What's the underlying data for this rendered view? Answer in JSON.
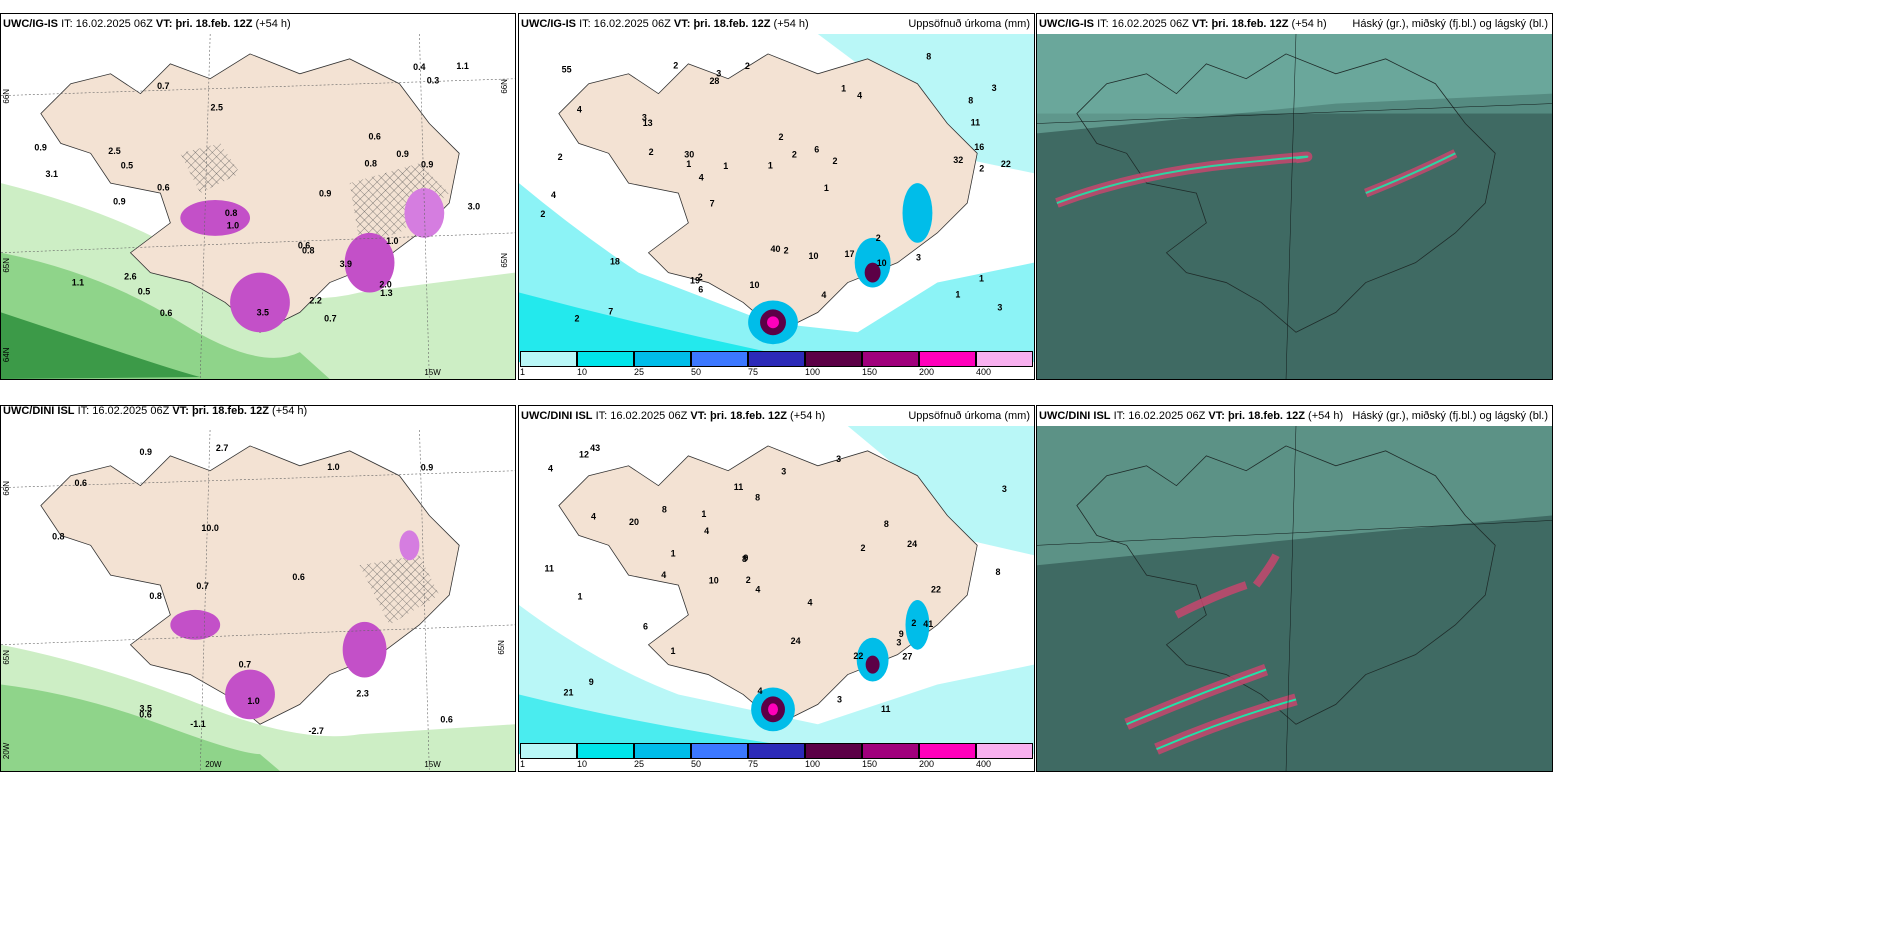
{
  "rows": [
    {
      "panels": [
        {
          "model": "UWC/IG-IS",
          "it": "16.02.2025 06Z",
          "vt_prefix": "VT:",
          "vt": "þri. 18.feb. 12Z",
          "lead": "(+54 h)",
          "title": ""
        },
        {
          "model": "UWC/IG-IS",
          "it": "16.02.2025 06Z",
          "vt_prefix": "VT:",
          "vt": "þri. 18.feb. 12Z",
          "lead": "(+54 h)",
          "title": "Uppsöfnuð úrkoma (mm)"
        },
        {
          "model": "UWC/IG-IS",
          "it": "16.02.2025 06Z",
          "vt_prefix": "VT:",
          "vt": "þri. 18.feb. 12Z",
          "lead": "(+54 h)",
          "title": "Háský (gr.), miðský (fj.bl.) og lágský (bl.)"
        }
      ]
    },
    {
      "panels": [
        {
          "model": "UWC/DINI ISL",
          "it": "16.02.2025 06Z",
          "vt_prefix": "VT:",
          "vt": "þri. 18.feb. 12Z",
          "lead": "(+54 h)",
          "title": ""
        },
        {
          "model": "UWC/DINI ISL",
          "it": "16.02.2025 06Z",
          "vt_prefix": "VT:",
          "vt": "þri. 18.feb. 12Z",
          "lead": "(+54 h)",
          "title": "Uppsöfnuð úrkoma (mm)"
        },
        {
          "model": "UWC/DINI ISL",
          "it": "16.02.2025 06Z",
          "vt_prefix": "VT:",
          "vt": "þri. 18.feb. 12Z",
          "lead": "(+54 h)",
          "title": "Háský (gr.), miðský (fj.bl.) og lágský (bl.)"
        }
      ]
    }
  ],
  "it_label": "IT:",
  "precip_legend": {
    "labels": [
      "1",
      "10",
      "25",
      "50",
      "75",
      "100",
      "150",
      "200",
      "400"
    ],
    "colors": [
      "#b9f7f7",
      "#00e5ea",
      "#00bde9",
      "#3c78ff",
      "#2c2ab8",
      "#5c0046",
      "#a0007c",
      "#ff00bb",
      "#f8b0ef"
    ]
  },
  "lat_labels": {
    "n66": "66N",
    "n65": "65N",
    "n64": "64N",
    "w20": "20W",
    "w15": "15W"
  },
  "top_wind_labels": [
    "0.7",
    "0.7",
    "2.6",
    "2.5",
    "0.9",
    "2.2",
    "3.0",
    "0.6",
    "1.0",
    "0.5",
    "1.1",
    "0.9",
    "0.8",
    "0.6",
    "0.8",
    "0.4",
    "3.1",
    "0.3",
    "1.0",
    "0.9",
    "2.0",
    "0.8",
    "0.6",
    "1.3",
    "0.9",
    "0.6",
    "0.9",
    "0.5",
    "3.5",
    "2.5",
    "3.9",
    "1.1"
  ],
  "bottom_wind_labels": [
    "-1.1",
    "-2.7",
    "3.5",
    "2.3",
    "0.9",
    "0.6",
    "0.8",
    "0.6",
    "2.7",
    "10.0",
    "0.9",
    "1.0",
    "0.7",
    "0.7",
    "1.0",
    "0.6",
    "0.8",
    "0.6"
  ],
  "top_precip_labels": [
    "2",
    "1",
    "2",
    "2",
    "2",
    "2",
    "1",
    "1",
    "1",
    "2",
    "6",
    "2",
    "1",
    "2",
    "10",
    "19",
    "4",
    "17",
    "32",
    "18",
    "40",
    "30",
    "1",
    "2",
    "3",
    "4",
    "8",
    "7",
    "1",
    "3",
    "13",
    "6",
    "3",
    "2",
    "4",
    "8",
    "4",
    "2",
    "28",
    "55",
    "10",
    "16",
    "22",
    "3",
    "11",
    "10",
    "7",
    "4",
    "3",
    "2",
    "2"
  ],
  "bottom_precip_labels": [
    "3",
    "4",
    "4",
    "1",
    "3",
    "3",
    "4",
    "2",
    "1",
    "2",
    "21",
    "22",
    "20",
    "12",
    "11",
    "41",
    "43",
    "9",
    "3",
    "8",
    "6",
    "4",
    "4",
    "4",
    "1",
    "4",
    "2",
    "1",
    "24",
    "24",
    "27",
    "3",
    "8",
    "22",
    "11",
    "10",
    "9",
    "11",
    "9",
    "8",
    "8",
    "8"
  ]
}
